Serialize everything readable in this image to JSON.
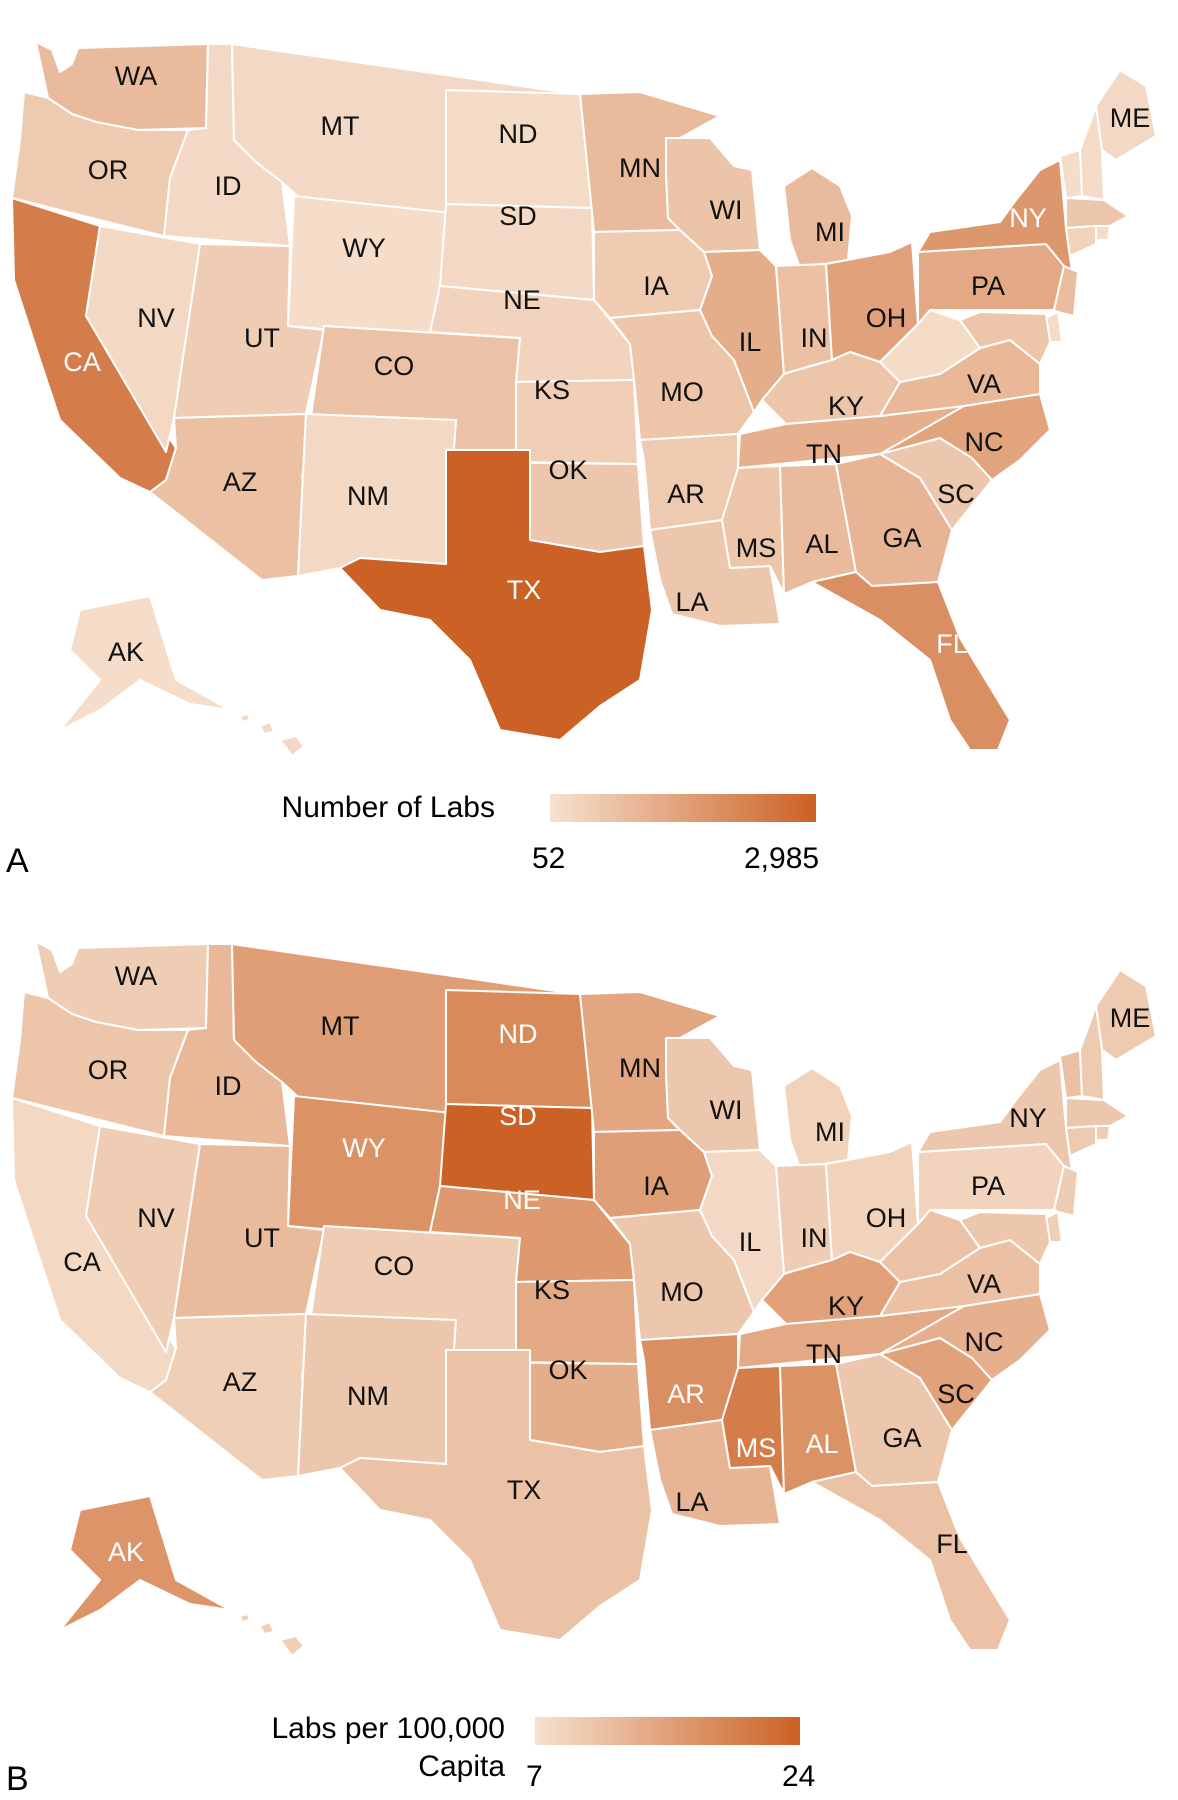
{
  "colors": {
    "low": "#f6e1cf",
    "high": "#cb6124"
  },
  "panels": [
    {
      "letter": "A",
      "legend": {
        "title": "Number of Labs",
        "min_label": "52",
        "max_label": "2,985"
      },
      "values": {
        "WA": 0.3,
        "OR": 0.18,
        "CA": 0.78,
        "NV": 0.07,
        "ID": 0.06,
        "MT": 0.06,
        "WY": 0.03,
        "UT": 0.16,
        "AZ": 0.26,
        "CO": 0.24,
        "NM": 0.07,
        "ND": 0.05,
        "SD": 0.06,
        "NE": 0.1,
        "KS": 0.15,
        "OK": 0.2,
        "TX": 1.0,
        "MN": 0.3,
        "IA": 0.17,
        "MO": 0.22,
        "AR": 0.18,
        "LA": 0.2,
        "WI": 0.23,
        "IL": 0.4,
        "MI": 0.3,
        "IN": 0.26,
        "OH": 0.5,
        "KY": 0.22,
        "TN": 0.38,
        "MS": 0.22,
        "AL": 0.3,
        "GA": 0.34,
        "FL": 0.64,
        "SC": 0.2,
        "NC": 0.48,
        "VA": 0.32,
        "WV": 0.05,
        "PA": 0.44,
        "NY": 0.58,
        "ME": 0.06,
        "VT": 0.03,
        "NH": 0.04,
        "MA": 0.2,
        "RI": 0.04,
        "CT": 0.12,
        "NJ": 0.28,
        "DE": 0.04,
        "MD": 0.22,
        "AK": 0.03,
        "HI": 0.06
      }
    },
    {
      "letter": "B",
      "legend": {
        "title": "Labs per 100,000 Capita",
        "min_label": "7",
        "max_label": "24"
      },
      "values": {
        "WA": 0.16,
        "OR": 0.22,
        "CA": 0.07,
        "NV": 0.16,
        "ID": 0.32,
        "MT": 0.52,
        "WY": 0.62,
        "UT": 0.3,
        "AZ": 0.14,
        "CO": 0.16,
        "NM": 0.2,
        "ND": 0.68,
        "SD": 1.0,
        "NE": 0.56,
        "KS": 0.44,
        "OK": 0.4,
        "TX": 0.24,
        "MN": 0.46,
        "IA": 0.52,
        "MO": 0.2,
        "AR": 0.64,
        "LA": 0.34,
        "WI": 0.2,
        "IL": 0.06,
        "MI": 0.12,
        "IN": 0.16,
        "OH": 0.12,
        "KY": 0.5,
        "TN": 0.44,
        "MS": 0.78,
        "AL": 0.62,
        "GA": 0.2,
        "FL": 0.24,
        "SC": 0.5,
        "NC": 0.38,
        "VA": 0.26,
        "WV": 0.24,
        "PA": 0.1,
        "NY": 0.2,
        "ME": 0.18,
        "VT": 0.26,
        "NH": 0.18,
        "MA": 0.2,
        "RI": 0.16,
        "CT": 0.18,
        "NJ": 0.16,
        "DE": 0.14,
        "MD": 0.2,
        "AK": 0.6,
        "HI": 0.14
      }
    }
  ],
  "labels": [
    "WA",
    "OR",
    "CA",
    "NV",
    "ID",
    "MT",
    "WY",
    "UT",
    "AZ",
    "CO",
    "NM",
    "ND",
    "SD",
    "NE",
    "KS",
    "OK",
    "TX",
    "MN",
    "IA",
    "MO",
    "AR",
    "LA",
    "WI",
    "IL",
    "MI",
    "IN",
    "OH",
    "KY",
    "TN",
    "MS",
    "AL",
    "GA",
    "FL",
    "SC",
    "NC",
    "VA",
    "PA",
    "NY",
    "ME",
    "AK"
  ]
}
